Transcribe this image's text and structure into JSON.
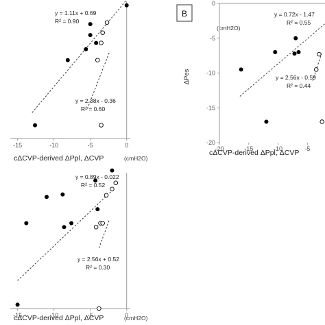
{
  "chart_data": [
    {
      "type": "scatter",
      "panel": "top-left",
      "xlabel": "cΔCVP-derived ΔPpl, ΔCVP",
      "xunit": "(cmH2O)",
      "x_ticks": [
        "-15",
        "-10",
        "-5",
        "0"
      ],
      "xlim": [
        -16,
        0.5
      ],
      "ylim": [
        -17,
        0.5
      ],
      "series": [
        {
          "marker": "filled",
          "points": [
            [
              -12.6,
              -15.3
            ],
            [
              -8.1,
              -7.0
            ],
            [
              -5.6,
              -5.6
            ],
            [
              -5.0,
              -3.8
            ],
            [
              -4.2,
              -4.8
            ],
            [
              -5.0,
              -2.4
            ],
            [
              0.0,
              0.0
            ]
          ]
        },
        {
          "marker": "open",
          "points": [
            [
              -4.0,
              -7.0
            ],
            [
              -3.5,
              -4.8
            ],
            [
              -3.3,
              -3.5
            ],
            [
              -2.7,
              -2.2
            ],
            [
              -3.5,
              -15.3
            ]
          ]
        }
      ],
      "trendlines": [
        {
          "equation": "y = 1.11x + 0.69",
          "r2": "R² = 0.90",
          "from": [
            -13,
            -13.7
          ],
          "to": [
            0,
            0.69
          ]
        },
        {
          "equation": "y = 2.38x - 0.36",
          "r2": "R² = 0.60",
          "from": [
            -5.4,
            -13.2
          ],
          "to": [
            -2.3,
            -5.8
          ]
        }
      ]
    },
    {
      "type": "scatter",
      "panel": "top-right",
      "panel_label": "B",
      "ylabel": "ΔPes",
      "yunit": "(cmH2O)",
      "xlabel": "cΔCVP-derived ΔPpl, ΔCVP",
      "x_ticks": [
        "-20",
        "-15",
        "-10",
        "-5"
      ],
      "y_ticks": [
        "0",
        "-5",
        "-10",
        "-15",
        "-20"
      ],
      "xlim": [
        -20,
        -2
      ],
      "ylim": [
        -20,
        0
      ],
      "series": [
        {
          "marker": "filled",
          "points": [
            [
              -16.3,
              -9.5
            ],
            [
              -12.0,
              -17.0
            ],
            [
              -10.5,
              -7.0
            ],
            [
              -7.2,
              -7.2
            ],
            [
              -7.0,
              -5.0
            ],
            [
              -6.5,
              -7.0
            ]
          ]
        },
        {
          "marker": "open",
          "points": [
            [
              -3.5,
              -9.5
            ],
            [
              -3.0,
              -7.3
            ],
            [
              -2.5,
              -17.0
            ]
          ]
        }
      ],
      "trendlines": [
        {
          "equation": "y = 0.72x - 1.47",
          "r2": "R² = 0.55",
          "from": [
            -16.5,
            -13.35
          ],
          "to": [
            -2,
            -2.9
          ]
        },
        {
          "equation": "y = 2.56x - 0.59",
          "r2": "R² = 0.44",
          "from": [
            -4.1,
            -11.1
          ],
          "to": [
            -2.6,
            -7.25
          ]
        }
      ]
    },
    {
      "type": "scatter",
      "panel": "bottom-left",
      "xlabel": "cΔCVP-derived ΔPpl, ΔCVP",
      "xunit": "(cmH2O)",
      "x_ticks": [
        "-15",
        "-10",
        "-5",
        "0"
      ],
      "xlim": [
        -16,
        0.5
      ],
      "ylim": [
        -17,
        0.5
      ],
      "series": [
        {
          "marker": "filled",
          "points": [
            [
              -15.0,
              -16.5
            ],
            [
              -13.8,
              -6.0
            ],
            [
              -11.0,
              -2.6
            ],
            [
              -8.8,
              -2.3
            ],
            [
              -8.6,
              -6.5
            ],
            [
              -7.6,
              -6.0
            ],
            [
              -4.3,
              -0.5
            ],
            [
              -2.0,
              0.8
            ],
            [
              -4.0,
              -4.2
            ]
          ]
        },
        {
          "marker": "open",
          "points": [
            [
              -4.2,
              -6.5
            ],
            [
              -3.6,
              -6.0
            ],
            [
              -3.3,
              -6.0
            ],
            [
              -2.8,
              -2.4
            ],
            [
              -2.0,
              -1.6
            ],
            [
              -1.5,
              -0.8
            ],
            [
              -3.8,
              -17.0
            ]
          ]
        }
      ],
      "trendlines": [
        {
          "equation": "y = 0.89x - 0.022",
          "r2": "R² = 0.52",
          "from": [
            -15,
            -13.4
          ],
          "to": [
            -2,
            -1.8
          ]
        },
        {
          "equation": "y = 2.56x + 0.52",
          "r2": "R² = 0.30",
          "from": [
            -3.8,
            -9.2
          ],
          "to": [
            -2.4,
            -5.6
          ]
        }
      ]
    }
  ]
}
